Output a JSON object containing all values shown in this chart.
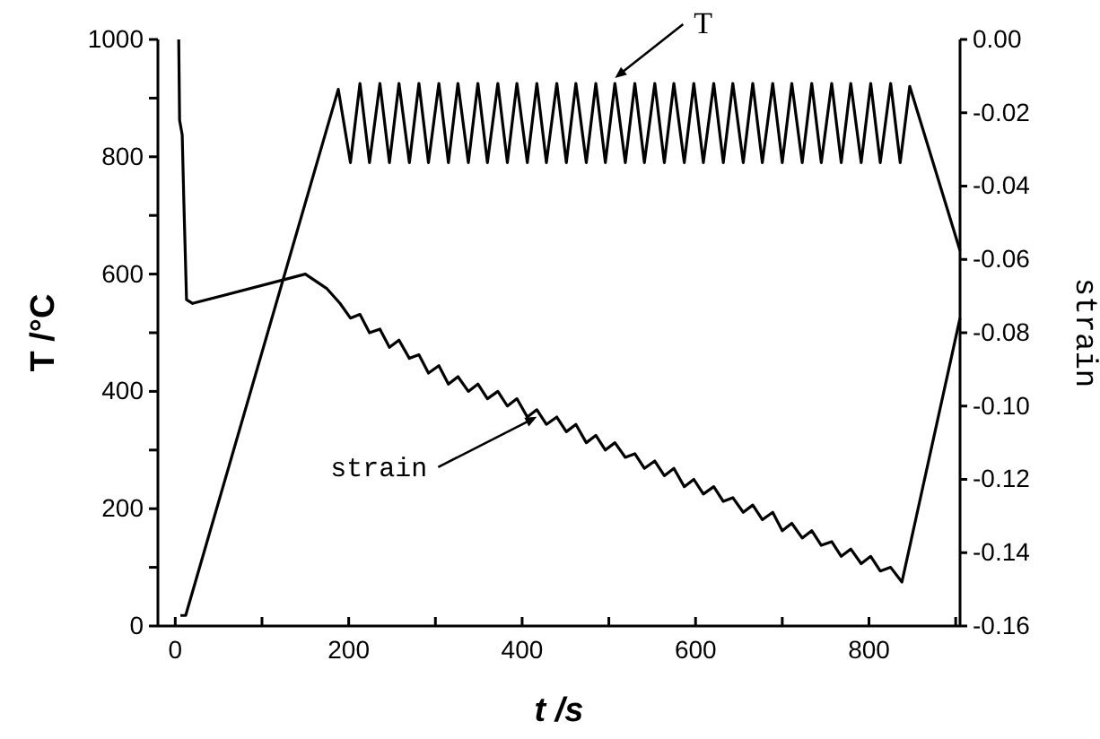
{
  "chart_data": {
    "type": "line",
    "xlabel": "t /s",
    "ylabel": "T /°C",
    "y2label": "strain",
    "xlim": [
      -20,
      905
    ],
    "xticks": [
      0,
      {
        "value": 100,
        "label": null
      },
      200,
      {
        "value": 300,
        "label": null
      },
      400,
      {
        "value": 500,
        "label": null
      },
      600,
      {
        "value": 700,
        "label": null
      },
      800,
      {
        "value": 900,
        "label": null
      }
    ],
    "ylim": [
      0,
      1000
    ],
    "yticks": [
      0,
      {
        "value": 100,
        "label": null
      },
      200,
      {
        "value": 300,
        "label": null
      },
      400,
      {
        "value": 500,
        "label": null
      },
      600,
      {
        "value": 700,
        "label": null
      },
      800,
      {
        "value": 900,
        "label": null
      },
      1000
    ],
    "y2lim": [
      -0.16,
      0
    ],
    "y2ticks": [
      {
        "value": -0.16,
        "label": "-0.16"
      },
      {
        "value": -0.14,
        "label": "-0.14"
      },
      {
        "value": -0.12,
        "label": "-0.12"
      },
      {
        "value": -0.1,
        "label": "-0.10"
      },
      {
        "value": -0.08,
        "label": "-0.08"
      },
      {
        "value": -0.06,
        "label": "-0.06"
      },
      {
        "value": -0.04,
        "label": "-0.04"
      },
      {
        "value": -0.02,
        "label": "-0.02"
      },
      {
        "value": 0,
        "label": "0.00"
      }
    ],
    "grid": false,
    "legend": false,
    "marker": "none",
    "line_style": "solid",
    "series": [
      {
        "name": "T",
        "color": "#000000",
        "x": [
          6,
          12,
          188,
          202,
          213,
          224,
          236,
          247,
          258,
          270,
          281,
          292,
          304,
          315,
          326,
          338,
          349,
          360,
          372,
          383,
          394,
          406,
          417,
          428,
          440,
          451,
          462,
          474,
          485,
          496,
          507,
          519,
          530,
          541,
          553,
          564,
          575,
          587,
          598,
          609,
          621,
          632,
          643,
          655,
          666,
          677,
          689,
          700,
          711,
          723,
          734,
          745,
          757,
          768,
          779,
          791,
          802,
          813,
          825,
          836,
          847,
          905
        ],
        "values": [
          18,
          18,
          915,
          790,
          925,
          790,
          925,
          790,
          925,
          790,
          925,
          790,
          925,
          790,
          925,
          790,
          925,
          790,
          925,
          790,
          925,
          790,
          925,
          790,
          925,
          790,
          925,
          790,
          925,
          790,
          925,
          790,
          925,
          790,
          925,
          790,
          925,
          790,
          925,
          790,
          925,
          790,
          925,
          790,
          925,
          790,
          925,
          790,
          925,
          790,
          925,
          790,
          925,
          790,
          925,
          790,
          925,
          790,
          925,
          790,
          920,
          640
        ]
      },
      {
        "name": "strain",
        "color": "#000000",
        "axis": "y2",
        "x": [
          4,
          5,
          8,
          10,
          13,
          20,
          150,
          175,
          190,
          202,
          213,
          224,
          236,
          247,
          258,
          270,
          281,
          292,
          304,
          315,
          326,
          338,
          349,
          360,
          372,
          383,
          394,
          406,
          417,
          428,
          440,
          451,
          462,
          474,
          485,
          496,
          507,
          519,
          530,
          541,
          553,
          564,
          575,
          587,
          598,
          609,
          621,
          632,
          643,
          655,
          666,
          677,
          689,
          700,
          711,
          723,
          734,
          745,
          757,
          768,
          779,
          791,
          802,
          813,
          825,
          838,
          905
        ],
        "values": [
          0,
          -0.022,
          -0.026,
          -0.045,
          -0.071,
          -0.072,
          -0.064,
          -0.068,
          -0.072,
          -0.076,
          -0.075,
          -0.08,
          -0.079,
          -0.084,
          -0.082,
          -0.087,
          -0.086,
          -0.091,
          -0.089,
          -0.094,
          -0.092,
          -0.096,
          -0.094,
          -0.098,
          -0.096,
          -0.1,
          -0.098,
          -0.103,
          -0.101,
          -0.105,
          -0.103,
          -0.107,
          -0.105,
          -0.11,
          -0.108,
          -0.112,
          -0.11,
          -0.114,
          -0.113,
          -0.117,
          -0.115,
          -0.119,
          -0.117,
          -0.122,
          -0.12,
          -0.124,
          -0.122,
          -0.126,
          -0.125,
          -0.129,
          -0.127,
          -0.131,
          -0.129,
          -0.134,
          -0.132,
          -0.136,
          -0.134,
          -0.138,
          -0.137,
          -0.141,
          -0.139,
          -0.143,
          -0.141,
          -0.145,
          -0.144,
          -0.148,
          -0.076
        ]
      }
    ]
  }
}
